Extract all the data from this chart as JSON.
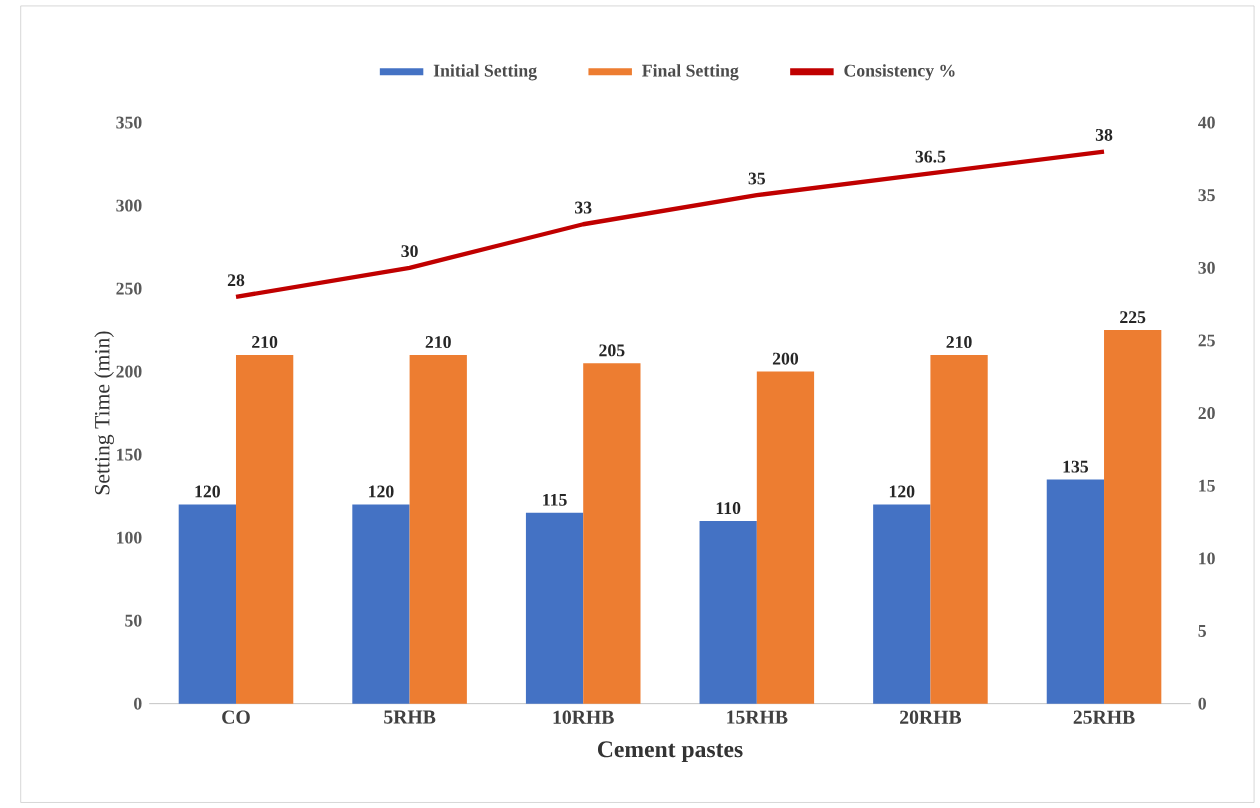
{
  "chart_data": {
    "type": "bar",
    "categories": [
      "CO",
      "5RHB",
      "10RHB",
      "15RHB",
      "20RHB",
      "25RHB"
    ],
    "xlabel": "Cement pastes",
    "ylabel": "Setting Time (min)",
    "series": [
      {
        "name": "Initial Setting",
        "color": "#4472c4",
        "values": [
          120,
          120,
          115,
          110,
          120,
          135
        ]
      },
      {
        "name": "Final Setting",
        "color": "#ed7d31",
        "values": [
          210,
          210,
          205,
          200,
          210,
          225
        ]
      },
      {
        "name": "Consistency %",
        "type": "line",
        "axis": "y2",
        "color": "#c00000",
        "values": [
          28,
          30,
          33,
          35,
          36.5,
          38
        ]
      }
    ],
    "ylim": [
      0,
      350
    ],
    "yticks": [
      0,
      50,
      100,
      150,
      200,
      250,
      300,
      350
    ],
    "y2lim": [
      0,
      40
    ],
    "y2ticks": [
      0,
      5,
      10,
      15,
      20,
      25,
      30,
      35,
      40
    ],
    "data_labels": true,
    "grid": false,
    "legend": "top",
    "marker": "none",
    "line_style": "solid"
  }
}
